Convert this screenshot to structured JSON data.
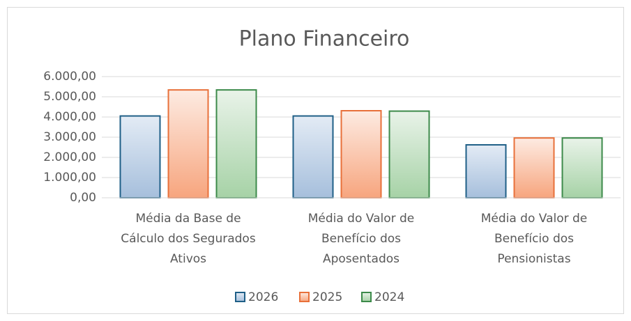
{
  "chart_data": {
    "type": "bar",
    "title": "Plano Financeiro",
    "categories": [
      "Média da Base de\nCálculo dos Segurados\nAtivos",
      "Média do Valor de\nBenefício dos\nAposentados",
      "Média do Valor de\nBenefício dos\nPensionistas"
    ],
    "series": [
      {
        "name": "2026",
        "color": "#1f5f87",
        "values": [
          4050,
          4050,
          2620
        ]
      },
      {
        "name": "2025",
        "color": "#e8703a",
        "values": [
          5340,
          4310,
          2960
        ]
      },
      {
        "name": "2024",
        "color": "#3c8a4a",
        "values": [
          5340,
          4290,
          2960
        ]
      }
    ],
    "ylim": [
      0,
      6000
    ],
    "yticks": [
      {
        "value": 0,
        "label": "0,00"
      },
      {
        "value": 1000,
        "label": "1.000,00"
      },
      {
        "value": 2000,
        "label": "2.000,00"
      },
      {
        "value": 3000,
        "label": "3.000,00"
      },
      {
        "value": 4000,
        "label": "4.000,00"
      },
      {
        "value": 5000,
        "label": "5.000,00"
      },
      {
        "value": 6000,
        "label": "6.000,00"
      }
    ],
    "grid": true,
    "legend": "bottom"
  }
}
